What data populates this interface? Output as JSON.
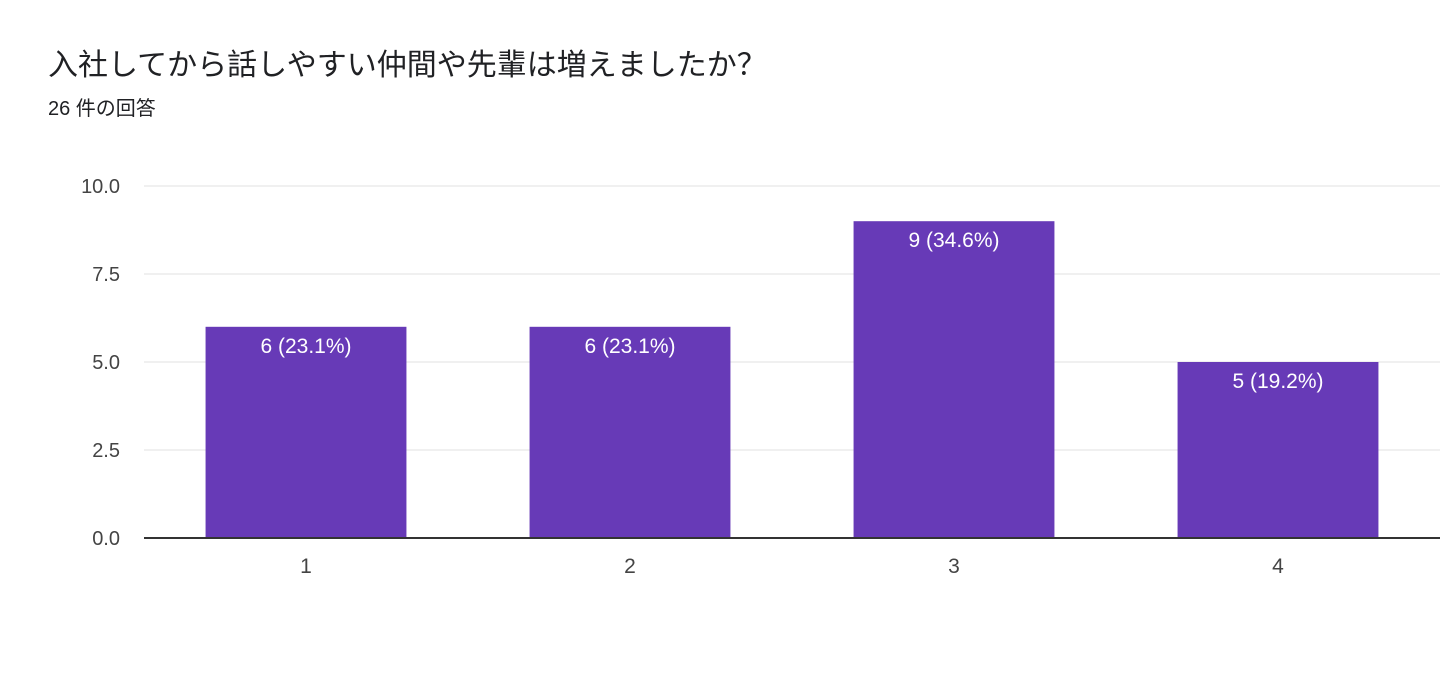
{
  "question": {
    "title": "入社してから話しやすい仲間や先輩は増えましたか？",
    "response_count": "26 件の回答"
  },
  "colors": {
    "bar": "#673ab7",
    "gridline": "#ebebeb",
    "baseline": "#333333",
    "tick_text": "#444444",
    "data_label": "#ffffff"
  },
  "chart_data": {
    "type": "bar",
    "categories": [
      "1",
      "2",
      "3",
      "4"
    ],
    "values": [
      6,
      6,
      9,
      5
    ],
    "data_labels": [
      "6 (23.1%)",
      "6 (23.1%)",
      "9 (34.6%)",
      "5 (19.2%)"
    ],
    "y_ticks": [
      "0.0",
      "2.5",
      "5.0",
      "7.5",
      "10.0"
    ],
    "y_tick_values": [
      0,
      2.5,
      5,
      7.5,
      10
    ],
    "ylim": [
      0,
      10
    ],
    "grid": true,
    "legend": "none",
    "title": "",
    "xlabel": "",
    "ylabel": ""
  }
}
